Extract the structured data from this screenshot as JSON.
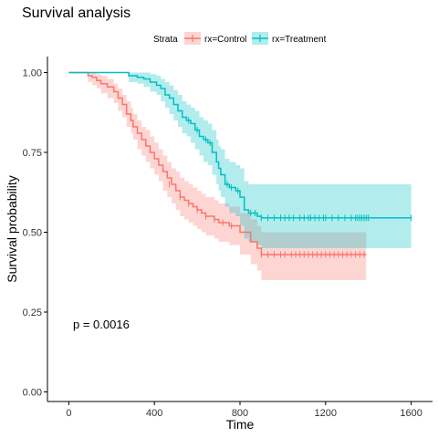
{
  "chart_data": {
    "type": "line",
    "title": "Survival analysis",
    "xlabel": "Time",
    "ylabel": "Survival probability",
    "xlim": [
      -100,
      1700
    ],
    "ylim": [
      -0.03,
      1.05
    ],
    "xticks": [
      0,
      400,
      800,
      1200,
      1600
    ],
    "yticks": [
      0.0,
      0.25,
      0.5,
      0.75,
      1.0
    ],
    "xtick_labels": [
      "0",
      "400",
      "800",
      "1200",
      "1600"
    ],
    "ytick_labels": [
      "0.00",
      "0.25",
      "0.50",
      "0.75",
      "1.00"
    ],
    "grid": false,
    "legend": {
      "title": "Strata",
      "placement": "top",
      "entries": [
        "rx=Control",
        "rx=Treatment"
      ]
    },
    "annotation": "p = 0.0016",
    "series": [
      {
        "name": "rx=Control",
        "color": "#F8766D",
        "band_color": "#F8766D",
        "steps": [
          [
            0,
            1.0
          ],
          [
            70,
            1.0
          ],
          [
            90,
            0.99
          ],
          [
            110,
            0.985
          ],
          [
            130,
            0.975
          ],
          [
            150,
            0.965
          ],
          [
            180,
            0.955
          ],
          [
            210,
            0.94
          ],
          [
            230,
            0.92
          ],
          [
            250,
            0.9
          ],
          [
            270,
            0.87
          ],
          [
            290,
            0.85
          ],
          [
            300,
            0.83
          ],
          [
            320,
            0.81
          ],
          [
            340,
            0.79
          ],
          [
            360,
            0.77
          ],
          [
            380,
            0.75
          ],
          [
            400,
            0.73
          ],
          [
            420,
            0.71
          ],
          [
            440,
            0.69
          ],
          [
            460,
            0.67
          ],
          [
            480,
            0.65
          ],
          [
            500,
            0.63
          ],
          [
            520,
            0.61
          ],
          [
            540,
            0.6
          ],
          [
            560,
            0.59
          ],
          [
            580,
            0.58
          ],
          [
            600,
            0.57
          ],
          [
            620,
            0.56
          ],
          [
            640,
            0.55
          ],
          [
            680,
            0.54
          ],
          [
            700,
            0.53
          ],
          [
            750,
            0.52
          ],
          [
            800,
            0.5
          ],
          [
            850,
            0.47
          ],
          [
            880,
            0.45
          ],
          [
            900,
            0.43
          ],
          [
            1390,
            0.43
          ]
        ],
        "upper": [
          [
            0,
            1.0
          ],
          [
            70,
            1.0
          ],
          [
            90,
            1.0
          ],
          [
            110,
            1.0
          ],
          [
            130,
            0.995
          ],
          [
            150,
            0.99
          ],
          [
            180,
            0.98
          ],
          [
            210,
            0.965
          ],
          [
            230,
            0.95
          ],
          [
            250,
            0.93
          ],
          [
            270,
            0.91
          ],
          [
            290,
            0.89
          ],
          [
            300,
            0.87
          ],
          [
            320,
            0.85
          ],
          [
            340,
            0.83
          ],
          [
            360,
            0.82
          ],
          [
            380,
            0.8
          ],
          [
            400,
            0.78
          ],
          [
            420,
            0.76
          ],
          [
            440,
            0.74
          ],
          [
            460,
            0.72
          ],
          [
            480,
            0.7
          ],
          [
            500,
            0.69
          ],
          [
            520,
            0.67
          ],
          [
            540,
            0.66
          ],
          [
            560,
            0.65
          ],
          [
            580,
            0.64
          ],
          [
            600,
            0.63
          ],
          [
            620,
            0.62
          ],
          [
            640,
            0.61
          ],
          [
            680,
            0.6
          ],
          [
            700,
            0.59
          ],
          [
            750,
            0.58
          ],
          [
            800,
            0.56
          ],
          [
            850,
            0.54
          ],
          [
            880,
            0.52
          ],
          [
            900,
            0.5
          ],
          [
            1390,
            0.5
          ]
        ],
        "lower": [
          [
            0,
            1.0
          ],
          [
            70,
            1.0
          ],
          [
            90,
            0.97
          ],
          [
            110,
            0.96
          ],
          [
            130,
            0.95
          ],
          [
            150,
            0.935
          ],
          [
            180,
            0.92
          ],
          [
            210,
            0.905
          ],
          [
            230,
            0.88
          ],
          [
            250,
            0.86
          ],
          [
            270,
            0.83
          ],
          [
            290,
            0.81
          ],
          [
            300,
            0.79
          ],
          [
            320,
            0.76
          ],
          [
            340,
            0.74
          ],
          [
            360,
            0.72
          ],
          [
            380,
            0.7
          ],
          [
            400,
            0.68
          ],
          [
            420,
            0.66
          ],
          [
            440,
            0.63
          ],
          [
            460,
            0.61
          ],
          [
            480,
            0.59
          ],
          [
            500,
            0.57
          ],
          [
            520,
            0.55
          ],
          [
            540,
            0.54
          ],
          [
            560,
            0.53
          ],
          [
            580,
            0.52
          ],
          [
            600,
            0.51
          ],
          [
            620,
            0.5
          ],
          [
            640,
            0.49
          ],
          [
            680,
            0.48
          ],
          [
            700,
            0.47
          ],
          [
            750,
            0.46
          ],
          [
            800,
            0.43
          ],
          [
            850,
            0.4
          ],
          [
            880,
            0.38
          ],
          [
            900,
            0.35
          ],
          [
            1390,
            0.35
          ]
        ],
        "censored": [
          [
            470,
            0.65
          ],
          [
            520,
            0.61
          ],
          [
            560,
            0.59
          ],
          [
            600,
            0.57
          ],
          [
            640,
            0.55
          ],
          [
            680,
            0.54
          ],
          [
            720,
            0.53
          ],
          [
            760,
            0.52
          ],
          [
            900,
            0.43
          ],
          [
            930,
            0.43
          ],
          [
            960,
            0.43
          ],
          [
            990,
            0.43
          ],
          [
            1010,
            0.43
          ],
          [
            1040,
            0.43
          ],
          [
            1060,
            0.43
          ],
          [
            1080,
            0.43
          ],
          [
            1100,
            0.43
          ],
          [
            1120,
            0.43
          ],
          [
            1140,
            0.43
          ],
          [
            1160,
            0.43
          ],
          [
            1180,
            0.43
          ],
          [
            1200,
            0.43
          ],
          [
            1220,
            0.43
          ],
          [
            1240,
            0.43
          ],
          [
            1260,
            0.43
          ],
          [
            1280,
            0.43
          ],
          [
            1300,
            0.43
          ],
          [
            1320,
            0.43
          ],
          [
            1340,
            0.43
          ],
          [
            1360,
            0.43
          ],
          [
            1380,
            0.43
          ]
        ]
      },
      {
        "name": "rx=Treatment",
        "color": "#00BFC4",
        "band_color": "#00BFC4",
        "steps": [
          [
            0,
            1.0
          ],
          [
            270,
            1.0
          ],
          [
            280,
            0.99
          ],
          [
            320,
            0.985
          ],
          [
            350,
            0.98
          ],
          [
            380,
            0.97
          ],
          [
            410,
            0.96
          ],
          [
            430,
            0.95
          ],
          [
            450,
            0.93
          ],
          [
            470,
            0.92
          ],
          [
            490,
            0.9
          ],
          [
            510,
            0.88
          ],
          [
            530,
            0.86
          ],
          [
            550,
            0.85
          ],
          [
            570,
            0.84
          ],
          [
            590,
            0.82
          ],
          [
            610,
            0.8
          ],
          [
            630,
            0.79
          ],
          [
            650,
            0.78
          ],
          [
            670,
            0.75
          ],
          [
            690,
            0.72
          ],
          [
            700,
            0.7
          ],
          [
            710,
            0.68
          ],
          [
            730,
            0.65
          ],
          [
            750,
            0.64
          ],
          [
            780,
            0.63
          ],
          [
            800,
            0.61
          ],
          [
            820,
            0.57
          ],
          [
            840,
            0.56
          ],
          [
            880,
            0.55
          ],
          [
            900,
            0.545
          ],
          [
            1600,
            0.545
          ]
        ],
        "upper": [
          [
            0,
            1.0
          ],
          [
            270,
            1.0
          ],
          [
            280,
            1.0
          ],
          [
            320,
            1.0
          ],
          [
            350,
            1.0
          ],
          [
            380,
            0.995
          ],
          [
            410,
            0.99
          ],
          [
            430,
            0.98
          ],
          [
            450,
            0.97
          ],
          [
            470,
            0.96
          ],
          [
            490,
            0.945
          ],
          [
            510,
            0.93
          ],
          [
            530,
            0.91
          ],
          [
            550,
            0.9
          ],
          [
            570,
            0.89
          ],
          [
            590,
            0.88
          ],
          [
            610,
            0.86
          ],
          [
            630,
            0.85
          ],
          [
            650,
            0.84
          ],
          [
            670,
            0.82
          ],
          [
            690,
            0.79
          ],
          [
            700,
            0.77
          ],
          [
            710,
            0.76
          ],
          [
            730,
            0.73
          ],
          [
            750,
            0.72
          ],
          [
            780,
            0.71
          ],
          [
            800,
            0.7
          ],
          [
            820,
            0.66
          ],
          [
            840,
            0.65
          ],
          [
            880,
            0.65
          ],
          [
            900,
            0.65
          ],
          [
            1600,
            0.65
          ]
        ],
        "lower": [
          [
            0,
            1.0
          ],
          [
            270,
            1.0
          ],
          [
            280,
            0.97
          ],
          [
            320,
            0.965
          ],
          [
            350,
            0.955
          ],
          [
            380,
            0.94
          ],
          [
            410,
            0.93
          ],
          [
            430,
            0.91
          ],
          [
            450,
            0.89
          ],
          [
            470,
            0.87
          ],
          [
            490,
            0.85
          ],
          [
            510,
            0.83
          ],
          [
            530,
            0.81
          ],
          [
            550,
            0.8
          ],
          [
            570,
            0.78
          ],
          [
            590,
            0.76
          ],
          [
            610,
            0.74
          ],
          [
            630,
            0.72
          ],
          [
            650,
            0.71
          ],
          [
            670,
            0.68
          ],
          [
            690,
            0.65
          ],
          [
            700,
            0.63
          ],
          [
            710,
            0.61
          ],
          [
            730,
            0.58
          ],
          [
            750,
            0.56
          ],
          [
            780,
            0.55
          ],
          [
            800,
            0.52
          ],
          [
            820,
            0.48
          ],
          [
            840,
            0.47
          ],
          [
            880,
            0.46
          ],
          [
            900,
            0.45
          ],
          [
            1600,
            0.45
          ]
        ],
        "censored": [
          [
            560,
            0.85
          ],
          [
            600,
            0.82
          ],
          [
            640,
            0.79
          ],
          [
            660,
            0.78
          ],
          [
            740,
            0.65
          ],
          [
            760,
            0.64
          ],
          [
            790,
            0.63
          ],
          [
            850,
            0.56
          ],
          [
            870,
            0.56
          ],
          [
            900,
            0.545
          ],
          [
            930,
            0.545
          ],
          [
            960,
            0.545
          ],
          [
            990,
            0.545
          ],
          [
            1010,
            0.545
          ],
          [
            1030,
            0.545
          ],
          [
            1050,
            0.545
          ],
          [
            1080,
            0.545
          ],
          [
            1100,
            0.545
          ],
          [
            1120,
            0.545
          ],
          [
            1130,
            0.545
          ],
          [
            1150,
            0.545
          ],
          [
            1170,
            0.545
          ],
          [
            1190,
            0.545
          ],
          [
            1200,
            0.545
          ],
          [
            1230,
            0.545
          ],
          [
            1260,
            0.545
          ],
          [
            1290,
            0.545
          ],
          [
            1320,
            0.545
          ],
          [
            1340,
            0.545
          ],
          [
            1350,
            0.545
          ],
          [
            1360,
            0.545
          ],
          [
            1370,
            0.545
          ],
          [
            1380,
            0.545
          ],
          [
            1390,
            0.545
          ],
          [
            1400,
            0.545
          ],
          [
            1600,
            0.545
          ]
        ]
      }
    ]
  }
}
